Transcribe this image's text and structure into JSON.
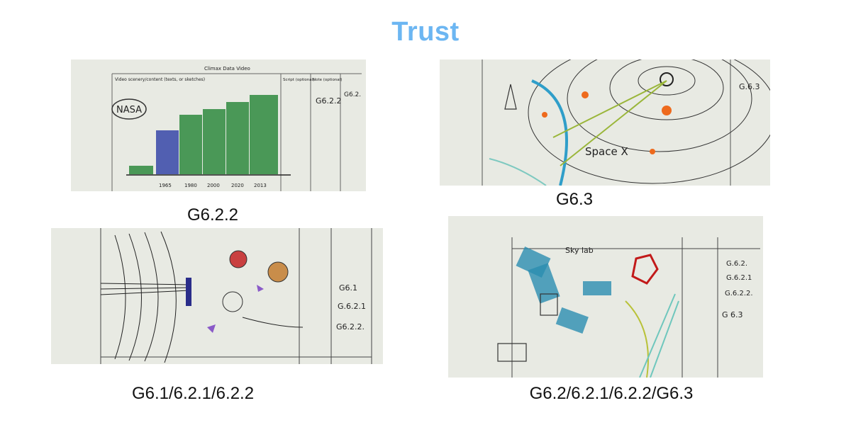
{
  "page": {
    "title": "Trust",
    "title_color": "#6cb6f2"
  },
  "sketches": [
    {
      "caption": "G6.2.2",
      "form_title": "Climax Data Video",
      "columns": [
        "Video scenery/content (texts, or sketches)",
        "Script (optional)",
        "Note (optional)"
      ],
      "handwritten": [
        "NASA",
        "G6.2.2",
        "G6.2."
      ],
      "years": [
        "1965",
        "1980",
        "2000",
        "2020",
        "2013"
      ]
    },
    {
      "caption": "G6.3",
      "handwritten": [
        "Space X",
        "G.6.3"
      ]
    },
    {
      "caption": "G6.1/6.2.1/6.2.2",
      "handwritten": [
        "G6.1",
        "G.6.2.1",
        "G6.2.2."
      ]
    },
    {
      "caption": "G6.2/6.2.1/6.2.2/G6.3",
      "handwritten": [
        "Sky lab",
        "G.6.2.",
        "G.6.2.1",
        "G.6.2.2.",
        "G 6.3"
      ]
    }
  ]
}
